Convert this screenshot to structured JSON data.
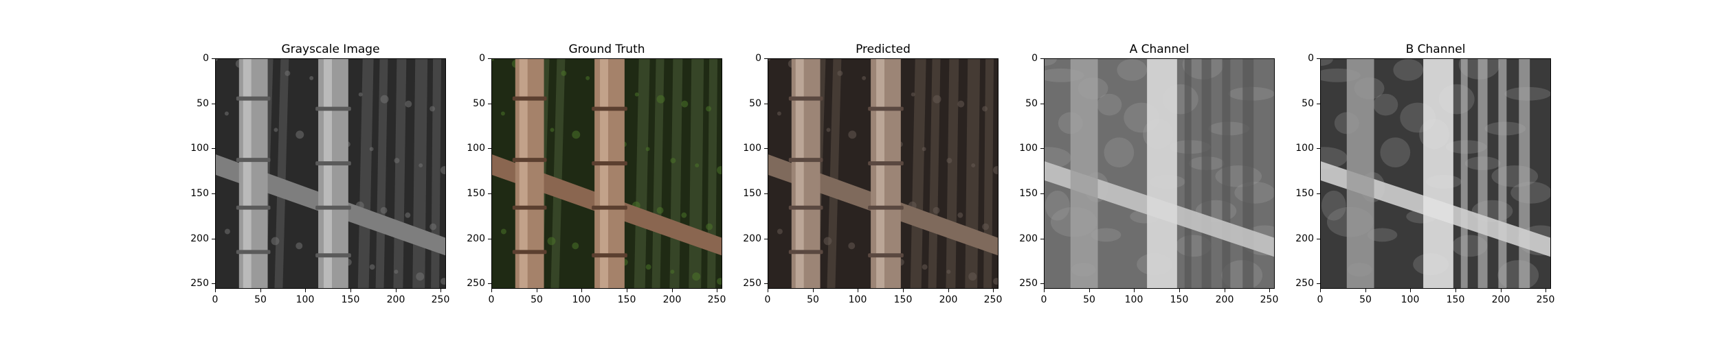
{
  "panels": [
    {
      "title": "Grayscale Image",
      "image": "grayscale bamboo photo"
    },
    {
      "title": "Ground Truth",
      "image": "color bamboo photo"
    },
    {
      "title": "Predicted",
      "image": "predicted colorized bamboo photo"
    },
    {
      "title": "A Channel",
      "image": "A channel map"
    },
    {
      "title": "B Channel",
      "image": "B channel map"
    }
  ],
  "axes": {
    "x_ticks": [
      "0",
      "50",
      "100",
      "150",
      "200",
      "250"
    ],
    "y_ticks": [
      "0",
      "50",
      "100",
      "150",
      "200",
      "250"
    ],
    "x_lim": [
      0,
      255
    ],
    "y_lim": [
      255,
      0
    ],
    "grid": false
  }
}
